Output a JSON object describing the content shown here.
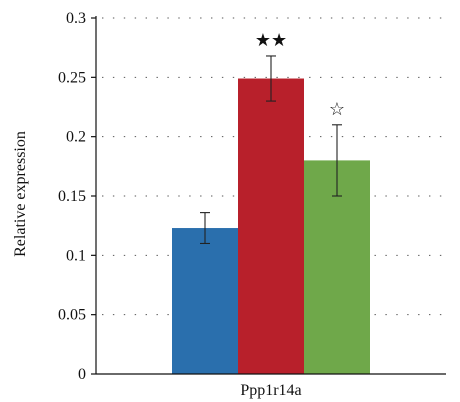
{
  "chart_data": {
    "type": "bar",
    "categories": [
      "Ppp1r14a"
    ],
    "series": [
      {
        "values": [
          0.123
        ],
        "error": [
          0.013
        ],
        "color": "#2a6fad",
        "annotation": ""
      },
      {
        "values": [
          0.249
        ],
        "error": [
          0.019
        ],
        "color": "#b8202b",
        "annotation": "★★"
      },
      {
        "values": [
          0.18
        ],
        "error": [
          0.03
        ],
        "color": "#6fa84a",
        "annotation": "☆"
      }
    ],
    "ylabel": "Relative expression",
    "xlabel": "",
    "title": "",
    "ylim": [
      0,
      0.3
    ],
    "yticks": [
      0,
      0.05,
      0.1,
      0.15,
      0.2,
      0.25,
      0.3
    ],
    "ytick_labels": [
      "0",
      "0.05",
      "0.1",
      "0.15",
      "0.2",
      "0.25",
      "0.3"
    ],
    "grid": "horizontal-dotted",
    "legend": "none"
  }
}
